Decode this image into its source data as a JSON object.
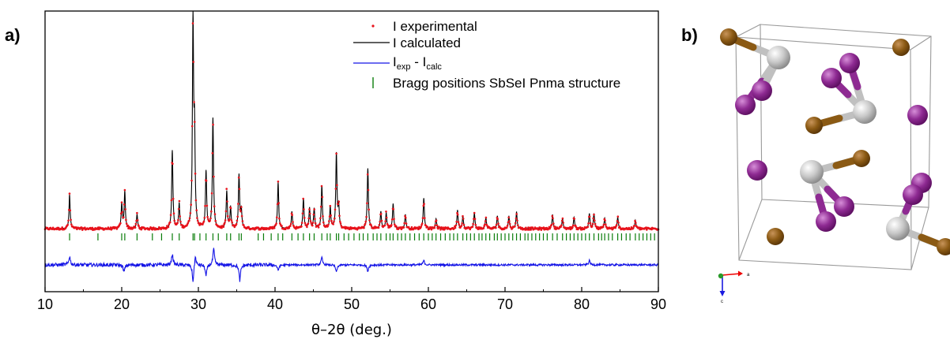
{
  "panel_a_label": "a)",
  "panel_b_label": "b)",
  "chart_data": {
    "type": "line",
    "xlabel": "θ–2θ (deg.)",
    "ylabel": "",
    "xlim": [
      10,
      90
    ],
    "xticks": [
      10,
      20,
      30,
      40,
      50,
      60,
      70,
      80,
      90
    ],
    "yticks_shown": false,
    "legend_position": "top-right",
    "legend": [
      {
        "key": "exp",
        "label": "I experimental",
        "style": "dots",
        "color": "#e8121b"
      },
      {
        "key": "calc",
        "label": "I calculated",
        "style": "line",
        "color": "#000000"
      },
      {
        "key": "diff",
        "label_main": "I",
        "label_sub1": "exp",
        "label_mid": " - I",
        "label_sub2": "calc",
        "style": "line",
        "color": "#1414e6"
      },
      {
        "key": "bragg",
        "label": "Bragg positions SbSeI Pnma structure",
        "style": "ticks",
        "color": "#0a7d0a"
      }
    ],
    "baseline": 0.2,
    "peaks": [
      {
        "x": 13.2,
        "y": 4.8
      },
      {
        "x": 20.0,
        "y": 3.4
      },
      {
        "x": 20.4,
        "y": 5.2
      },
      {
        "x": 22.0,
        "y": 2.0
      },
      {
        "x": 26.6,
        "y": 11.0
      },
      {
        "x": 27.5,
        "y": 3.5
      },
      {
        "x": 29.3,
        "y": 28.5
      },
      {
        "x": 29.5,
        "y": 12.5
      },
      {
        "x": 31.0,
        "y": 8.0
      },
      {
        "x": 31.9,
        "y": 15.5
      },
      {
        "x": 33.7,
        "y": 5.2
      },
      {
        "x": 34.2,
        "y": 3.0
      },
      {
        "x": 35.3,
        "y": 7.5
      },
      {
        "x": 35.6,
        "y": 2.5
      },
      {
        "x": 40.4,
        "y": 6.5
      },
      {
        "x": 42.2,
        "y": 2.4
      },
      {
        "x": 43.7,
        "y": 4.2
      },
      {
        "x": 44.5,
        "y": 2.9
      },
      {
        "x": 45.1,
        "y": 2.8
      },
      {
        "x": 46.1,
        "y": 6.0
      },
      {
        "x": 47.2,
        "y": 3.0
      },
      {
        "x": 48.0,
        "y": 10.5
      },
      {
        "x": 48.3,
        "y": 3.0
      },
      {
        "x": 52.1,
        "y": 8.5
      },
      {
        "x": 53.8,
        "y": 2.4
      },
      {
        "x": 54.5,
        "y": 2.2
      },
      {
        "x": 55.4,
        "y": 3.5
      },
      {
        "x": 57.0,
        "y": 2.0
      },
      {
        "x": 59.4,
        "y": 4.3
      },
      {
        "x": 61.0,
        "y": 1.4
      },
      {
        "x": 63.8,
        "y": 2.6
      },
      {
        "x": 64.5,
        "y": 1.8
      },
      {
        "x": 66.0,
        "y": 2.2
      },
      {
        "x": 67.5,
        "y": 1.6
      },
      {
        "x": 69.0,
        "y": 1.8
      },
      {
        "x": 70.5,
        "y": 1.8
      },
      {
        "x": 71.5,
        "y": 2.4
      },
      {
        "x": 76.2,
        "y": 2.0
      },
      {
        "x": 77.5,
        "y": 1.5
      },
      {
        "x": 79.0,
        "y": 1.6
      },
      {
        "x": 81.0,
        "y": 2.1
      },
      {
        "x": 81.6,
        "y": 2.1
      },
      {
        "x": 83.0,
        "y": 1.5
      },
      {
        "x": 84.7,
        "y": 1.6
      },
      {
        "x": 87.0,
        "y": 1.2
      }
    ],
    "difference_spikes": [
      {
        "x": 13.2,
        "y": 1.2
      },
      {
        "x": 20.3,
        "y": -1.0
      },
      {
        "x": 26.6,
        "y": 1.5
      },
      {
        "x": 29.3,
        "y": -2.4
      },
      {
        "x": 29.6,
        "y": 1.4
      },
      {
        "x": 31.0,
        "y": -1.6
      },
      {
        "x": 32.0,
        "y": 2.2
      },
      {
        "x": 35.4,
        "y": -2.2
      },
      {
        "x": 40.4,
        "y": -0.8
      },
      {
        "x": 46.1,
        "y": 1.0
      },
      {
        "x": 48.0,
        "y": -1.0
      },
      {
        "x": 52.1,
        "y": -0.9
      },
      {
        "x": 59.4,
        "y": 0.6
      },
      {
        "x": 81.0,
        "y": 0.6
      }
    ],
    "bragg_positions": [
      13.2,
      16.9,
      20.0,
      20.4,
      22.0,
      24.0,
      25.2,
      26.6,
      27.5,
      29.3,
      29.5,
      30.2,
      31.0,
      31.9,
      32.6,
      33.7,
      34.2,
      35.3,
      35.6,
      37.8,
      38.5,
      39.5,
      40.4,
      41.0,
      42.2,
      43.0,
      43.7,
      44.5,
      45.1,
      46.1,
      46.8,
      47.2,
      48.0,
      48.3,
      49.0,
      49.6,
      50.3,
      51.0,
      51.5,
      52.1,
      52.8,
      53.3,
      53.8,
      54.5,
      55.0,
      55.4,
      56.0,
      56.5,
      57.0,
      57.6,
      58.2,
      58.8,
      59.4,
      60.0,
      60.5,
      61.0,
      61.6,
      62.2,
      62.8,
      63.3,
      63.8,
      64.5,
      65.0,
      65.5,
      66.0,
      66.6,
      67.0,
      67.5,
      68.0,
      68.6,
      69.0,
      69.5,
      70.0,
      70.5,
      71.0,
      71.5,
      72.0,
      72.6,
      73.0,
      73.5,
      74.0,
      74.5,
      75.0,
      75.5,
      76.2,
      76.8,
      77.5,
      78.0,
      78.5,
      79.0,
      79.5,
      80.0,
      80.5,
      81.0,
      81.6,
      82.2,
      82.6,
      83.0,
      83.5,
      84.0,
      84.7,
      85.2,
      85.8,
      86.3,
      87.0,
      87.5,
      88.0,
      88.5,
      89.0,
      89.5
    ]
  },
  "structure": {
    "atom_colors": {
      "Sb": "#c8c8c8",
      "Se": "#8b5a14",
      "I": "#8e2a92"
    },
    "axes_labels": [
      "a",
      "c"
    ]
  }
}
